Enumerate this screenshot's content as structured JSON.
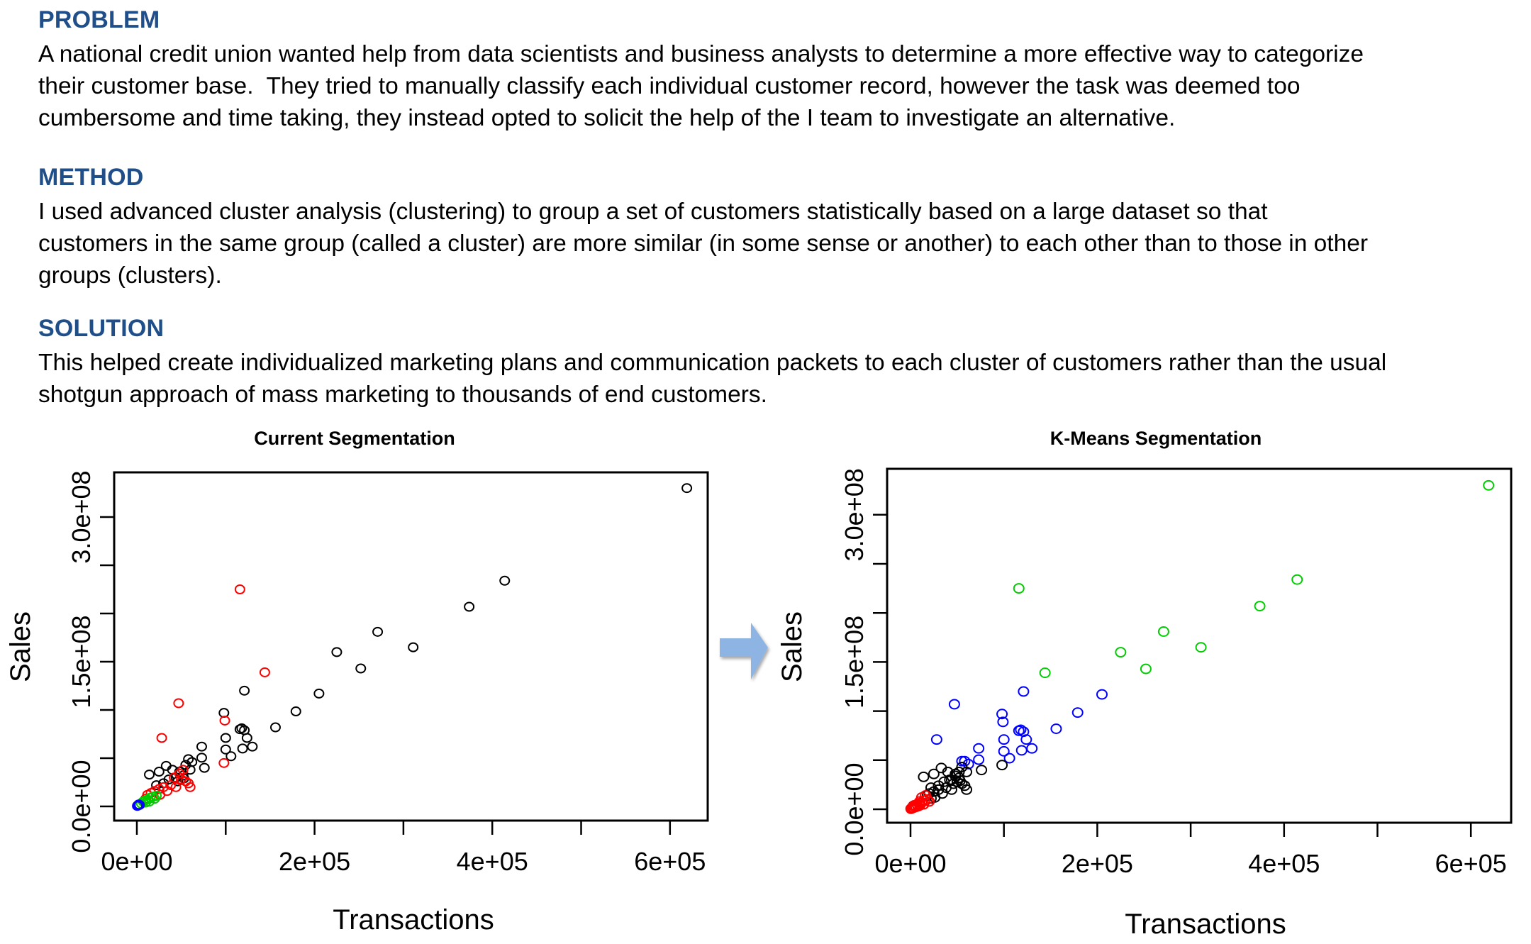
{
  "sections": [
    {
      "heading": "PROBLEM",
      "lines": [
        "A national credit union wanted help from data scientists and business analysts to determine a more effective way to categorize",
        "their customer base.  They tried to manually classify each individual customer record, however the task was deemed too",
        "cumbersome and time taking, they instead opted to solicit the help of the I team to investigate an alternative."
      ]
    },
    {
      "heading": "METHOD",
      "lines": [
        "I used advanced cluster analysis (clustering) to group a set of customers statistically based on a large dataset so that",
        "customers in the same group (called a cluster) are more similar (in some sense or another) to each other than to those in other",
        "groups (clusters)."
      ]
    },
    {
      "heading": "SOLUTION",
      "lines": [
        "This helped create individualized marketing plans and communication packets to each cluster of customers rather than the usual",
        "shotgun approach of mass marketing to thousands of end customers."
      ]
    }
  ],
  "arrow": {
    "color": "#8EB4E3",
    "icon": "right-arrow-icon"
  },
  "chart_data": [
    {
      "type": "scatter",
      "title": "Current Segmentation",
      "xlabel": "Transactions",
      "ylabel": "Sales",
      "xlim": [
        0,
        642000
      ],
      "ylim": [
        0,
        346000000
      ],
      "xticks": [
        0,
        100000,
        200000,
        300000,
        400000,
        500000,
        600000
      ],
      "xtick_labels": [
        "0e+00",
        "",
        "2e+05",
        "",
        "4e+05",
        "",
        "6e+05"
      ],
      "yticks": [
        0,
        50000000,
        100000000,
        150000000,
        200000000,
        250000000,
        300000000
      ],
      "ytick_labels": [
        "0.0e+00",
        "",
        "",
        "1.5e+08",
        "",
        "",
        "3.0e+08"
      ],
      "grid": false,
      "marker": "open-circle",
      "series_colors": {
        "1": "#000000",
        "2": "#FF0000",
        "3": "#00CD00",
        "4": "#0000FF"
      },
      "points": [
        [
          619000,
          330000000,
          1
        ],
        [
          414000,
          234000000,
          1
        ],
        [
          374000,
          207000000,
          1
        ],
        [
          271000,
          181000000,
          1
        ],
        [
          311000,
          165000000,
          1
        ],
        [
          225000,
          160000000,
          1
        ],
        [
          252000,
          143000000,
          1
        ],
        [
          205000,
          117000000,
          1
        ],
        [
          179000,
          98500000,
          1
        ],
        [
          156000,
          82000000,
          1
        ],
        [
          121000,
          120000000,
          1
        ],
        [
          98000,
          97000000,
          1
        ],
        [
          100000,
          71000000,
          1
        ],
        [
          100000,
          59000000,
          1
        ],
        [
          106000,
          52000000,
          1
        ],
        [
          116000,
          80000000,
          1
        ],
        [
          118000,
          81000000,
          1
        ],
        [
          121000,
          79000000,
          1
        ],
        [
          124000,
          71000000,
          1
        ],
        [
          130000,
          62000000,
          1
        ],
        [
          119000,
          60000000,
          1
        ],
        [
          73000,
          62000000,
          1
        ],
        [
          73000,
          50500000,
          1
        ],
        [
          76000,
          40000000,
          1
        ],
        [
          33000,
          42000000,
          1
        ],
        [
          58000,
          49000000,
          1
        ],
        [
          62000,
          46000000,
          1
        ],
        [
          55000,
          43000000,
          1
        ],
        [
          14000,
          33000000,
          1
        ],
        [
          25000,
          36000000,
          1
        ],
        [
          40000,
          38000000,
          1
        ],
        [
          48000,
          36000000,
          1
        ],
        [
          52000,
          32000000,
          1
        ],
        [
          44000,
          30000000,
          1
        ],
        [
          36000,
          28000000,
          1
        ],
        [
          30000,
          24000000,
          1
        ],
        [
          22000,
          22000000,
          1
        ],
        [
          46000,
          26000000,
          1
        ],
        [
          53000,
          29000000,
          1
        ],
        [
          60000,
          38000000,
          1
        ],
        [
          116000,
          225000000,
          2
        ],
        [
          144000,
          139000000,
          2
        ],
        [
          47000,
          107000000,
          2
        ],
        [
          28000,
          71000000,
          2
        ],
        [
          99000,
          89000000,
          2
        ],
        [
          98000,
          45000000,
          2
        ],
        [
          42000,
          30000000,
          2
        ],
        [
          50000,
          28000000,
          2
        ],
        [
          55000,
          26000000,
          2
        ],
        [
          38000,
          22000000,
          2
        ],
        [
          30000,
          20000000,
          2
        ],
        [
          25000,
          18000000,
          2
        ],
        [
          20000,
          16000000,
          2
        ],
        [
          16000,
          14000000,
          2
        ],
        [
          12000,
          12000000,
          2
        ],
        [
          34000,
          16000000,
          2
        ],
        [
          26000,
          12000000,
          2
        ],
        [
          18000,
          10000000,
          2
        ],
        [
          10000,
          8000000,
          2
        ],
        [
          44000,
          20000000,
          2
        ],
        [
          58000,
          24000000,
          2
        ],
        [
          60000,
          20000000,
          2
        ],
        [
          48000,
          34000000,
          2
        ],
        [
          52000,
          38000000,
          2
        ],
        [
          15000,
          9000000,
          3
        ],
        [
          12000,
          7000000,
          3
        ],
        [
          9000,
          6000000,
          3
        ],
        [
          7000,
          5000000,
          3
        ],
        [
          18000,
          10000000,
          3
        ],
        [
          20000,
          8000000,
          3
        ],
        [
          14000,
          5000000,
          3
        ],
        [
          5000,
          3000000,
          3
        ],
        [
          10000,
          4000000,
          3
        ],
        [
          22000,
          11000000,
          3
        ],
        [
          2000,
          2000000,
          4
        ],
        [
          1000,
          1000000,
          4
        ],
        [
          3000,
          1500000,
          4
        ],
        [
          500,
          500000,
          4
        ]
      ]
    },
    {
      "type": "scatter",
      "title": "K-Means Segmentation",
      "xlabel": "Transactions",
      "ylabel": "Sales",
      "xlim": [
        0,
        643000
      ],
      "ylim": [
        0,
        346000000
      ],
      "xticks": [
        0,
        100000,
        200000,
        300000,
        400000,
        500000,
        600000
      ],
      "xtick_labels": [
        "0e+00",
        "",
        "2e+05",
        "",
        "4e+05",
        "",
        "6e+05"
      ],
      "yticks": [
        0,
        50000000,
        100000000,
        150000000,
        200000000,
        250000000,
        300000000
      ],
      "ytick_labels": [
        "0.0e+00",
        "",
        "",
        "1.5e+08",
        "",
        "",
        "3.0e+08"
      ],
      "grid": false,
      "marker": "open-circle",
      "series_colors": {
        "1": "#000000",
        "2": "#FF0000",
        "3": "#00CD00",
        "4": "#0000FF"
      },
      "points": [
        [
          619000,
          330000000,
          3
        ],
        [
          414000,
          234000000,
          3
        ],
        [
          374000,
          207000000,
          3
        ],
        [
          271000,
          181000000,
          3
        ],
        [
          311000,
          165000000,
          3
        ],
        [
          225000,
          160000000,
          3
        ],
        [
          252000,
          143000000,
          3
        ],
        [
          144000,
          139000000,
          3
        ],
        [
          116000,
          225000000,
          3
        ],
        [
          205000,
          117000000,
          4
        ],
        [
          179000,
          98500000,
          4
        ],
        [
          156000,
          82000000,
          4
        ],
        [
          121000,
          120000000,
          4
        ],
        [
          98000,
          97000000,
          4
        ],
        [
          99000,
          89000000,
          4
        ],
        [
          100000,
          71000000,
          4
        ],
        [
          100000,
          59000000,
          4
        ],
        [
          106000,
          52000000,
          4
        ],
        [
          116000,
          80000000,
          4
        ],
        [
          118000,
          81000000,
          4
        ],
        [
          121000,
          79000000,
          4
        ],
        [
          124000,
          71000000,
          4
        ],
        [
          130000,
          62000000,
          4
        ],
        [
          119000,
          60000000,
          4
        ],
        [
          47000,
          107000000,
          4
        ],
        [
          28000,
          71000000,
          4
        ],
        [
          73000,
          62000000,
          4
        ],
        [
          73000,
          50500000,
          4
        ],
        [
          58000,
          49000000,
          4
        ],
        [
          62000,
          46000000,
          4
        ],
        [
          55000,
          49000000,
          4
        ],
        [
          98000,
          45000000,
          1
        ],
        [
          76000,
          40000000,
          1
        ],
        [
          33000,
          42000000,
          1
        ],
        [
          55000,
          43000000,
          1
        ],
        [
          14000,
          33000000,
          1
        ],
        [
          25000,
          36000000,
          1
        ],
        [
          40000,
          38000000,
          1
        ],
        [
          48000,
          36000000,
          1
        ],
        [
          52000,
          32000000,
          1
        ],
        [
          44000,
          30000000,
          1
        ],
        [
          36000,
          28000000,
          1
        ],
        [
          30000,
          24000000,
          1
        ],
        [
          22000,
          22000000,
          1
        ],
        [
          46000,
          26000000,
          1
        ],
        [
          53000,
          29000000,
          1
        ],
        [
          60000,
          38000000,
          1
        ],
        [
          42000,
          30000000,
          1
        ],
        [
          50000,
          28000000,
          1
        ],
        [
          55000,
          26000000,
          1
        ],
        [
          38000,
          22000000,
          1
        ],
        [
          30000,
          20000000,
          1
        ],
        [
          25000,
          18000000,
          1
        ],
        [
          20000,
          16000000,
          1
        ],
        [
          34000,
          16000000,
          1
        ],
        [
          44000,
          20000000,
          1
        ],
        [
          58000,
          24000000,
          1
        ],
        [
          60000,
          20000000,
          1
        ],
        [
          48000,
          34000000,
          1
        ],
        [
          52000,
          38000000,
          1
        ],
        [
          26000,
          12000000,
          1
        ],
        [
          22000,
          11000000,
          1
        ],
        [
          18000,
          14000000,
          1
        ],
        [
          16000,
          14000000,
          2
        ],
        [
          12000,
          12000000,
          2
        ],
        [
          18000,
          10000000,
          2
        ],
        [
          10000,
          8000000,
          2
        ],
        [
          15000,
          9000000,
          2
        ],
        [
          12000,
          7000000,
          2
        ],
        [
          9000,
          6000000,
          2
        ],
        [
          7000,
          5000000,
          2
        ],
        [
          20000,
          8000000,
          2
        ],
        [
          14000,
          5000000,
          2
        ],
        [
          5000,
          3000000,
          2
        ],
        [
          10000,
          4000000,
          2
        ],
        [
          2000,
          2000000,
          2
        ],
        [
          1000,
          1000000,
          2
        ],
        [
          3000,
          1500000,
          2
        ],
        [
          500,
          500000,
          2
        ],
        [
          4000,
          4000000,
          2
        ],
        [
          6000,
          2500000,
          2
        ],
        [
          8000,
          3000000,
          2
        ],
        [
          3000,
          3500000,
          2
        ]
      ]
    }
  ]
}
